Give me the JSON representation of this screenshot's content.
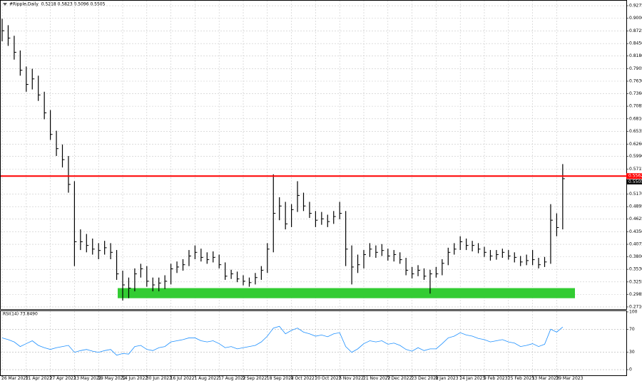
{
  "chart_data": [
    {
      "type": "ohlc",
      "title": "#Ripple,Daily  0.5218 0.5823 0.5096 0.5505",
      "categories": [
        "26 Mar 2022",
        null,
        null,
        null,
        "11 Apr 2022",
        null,
        null,
        null,
        "27 Apr 2022",
        null,
        null,
        null,
        "13 May 2022",
        null,
        null,
        null,
        "29 May 2022",
        null,
        null,
        null,
        "14 Jun 2022",
        null,
        null,
        null,
        "30 Jun 2022",
        null,
        null,
        null,
        "16 Jul 2022",
        null,
        null,
        null,
        "1 Aug 2022",
        null,
        null,
        null,
        "17 Aug 2022",
        null,
        null,
        null,
        "2 Sep 2022",
        null,
        null,
        null,
        "18 Sep 2022",
        null,
        null,
        null,
        "4 Oct 2022",
        null,
        null,
        null,
        "20 Oct 2022",
        null,
        null,
        null,
        "5 Nov 2022",
        null,
        null,
        null,
        "21 Nov 2022",
        null,
        null,
        null,
        "7 Dec 2022",
        null,
        null,
        null,
        "23 Dec 2022",
        null,
        null,
        null,
        "8 Jan 2023",
        null,
        null,
        null,
        "24 Jan 2023",
        null,
        null,
        null,
        "9 Feb 2023",
        null,
        null,
        null,
        "25 Feb 2023",
        null,
        null,
        null,
        "13 Mar 2023",
        null,
        null,
        null,
        "29 Mar 2023",
        null
      ],
      "high": [
        0.899,
        0.885,
        0.862,
        0.83,
        0.795,
        0.79,
        0.775,
        0.74,
        0.7,
        0.655,
        0.625,
        0.6,
        0.545,
        0.44,
        0.43,
        0.42,
        0.41,
        0.415,
        0.41,
        0.395,
        0.35,
        0.335,
        0.355,
        0.365,
        0.36,
        0.335,
        0.335,
        0.34,
        0.365,
        0.37,
        0.375,
        0.395,
        0.405,
        0.398,
        0.39,
        0.392,
        0.385,
        0.368,
        0.352,
        0.348,
        0.34,
        0.335,
        0.345,
        0.36,
        0.41,
        0.56,
        0.51,
        0.5,
        0.495,
        0.545,
        0.52,
        0.5,
        0.48,
        0.478,
        0.472,
        0.48,
        0.5,
        0.48,
        0.405,
        0.385,
        0.395,
        0.41,
        0.405,
        0.408,
        0.398,
        0.395,
        0.39,
        0.378,
        0.358,
        0.362,
        0.355,
        0.352,
        0.358,
        0.375,
        0.4,
        0.41,
        0.425,
        0.42,
        0.415,
        0.41,
        0.402,
        0.395,
        0.395,
        0.398,
        0.395,
        0.39,
        0.382,
        0.385,
        0.395,
        0.378,
        0.38,
        0.495,
        0.475,
        0.5823
      ],
      "low": [
        0.85,
        0.84,
        0.81,
        0.775,
        0.74,
        0.745,
        0.72,
        0.68,
        0.635,
        0.6,
        0.575,
        0.52,
        0.36,
        0.395,
        0.39,
        0.385,
        0.375,
        0.385,
        0.375,
        0.33,
        0.285,
        0.29,
        0.305,
        0.335,
        0.315,
        0.305,
        0.305,
        0.31,
        0.32,
        0.345,
        0.35,
        0.36,
        0.375,
        0.37,
        0.365,
        0.368,
        0.355,
        0.33,
        0.332,
        0.325,
        0.318,
        0.315,
        0.32,
        0.33,
        0.345,
        0.39,
        0.46,
        0.44,
        0.445,
        0.478,
        0.48,
        0.465,
        0.445,
        0.45,
        0.445,
        0.452,
        0.462,
        0.36,
        0.32,
        0.345,
        0.355,
        0.38,
        0.378,
        0.382,
        0.372,
        0.37,
        0.365,
        0.34,
        0.333,
        0.338,
        0.33,
        0.3,
        0.335,
        0.34,
        0.362,
        0.385,
        0.395,
        0.395,
        0.392,
        0.388,
        0.38,
        0.372,
        0.374,
        0.378,
        0.374,
        0.368,
        0.36,
        0.362,
        0.362,
        0.355,
        0.358,
        0.365,
        0.425,
        0.44
      ],
      "close": [
        0.873,
        0.857,
        0.826,
        0.787,
        0.756,
        0.768,
        0.733,
        0.694,
        0.647,
        0.616,
        0.592,
        0.538,
        0.413,
        0.413,
        0.405,
        0.397,
        0.394,
        0.4,
        0.39,
        0.343,
        0.319,
        0.312,
        0.343,
        0.354,
        0.327,
        0.319,
        0.323,
        0.327,
        0.354,
        0.358,
        0.363,
        0.382,
        0.39,
        0.379,
        0.374,
        0.379,
        0.363,
        0.338,
        0.343,
        0.332,
        0.327,
        0.324,
        0.335,
        0.351,
        0.397,
        0.475,
        0.491,
        0.452,
        0.483,
        0.514,
        0.491,
        0.475,
        0.46,
        0.463,
        0.457,
        0.468,
        0.475,
        0.397,
        0.358,
        0.363,
        0.385,
        0.397,
        0.39,
        0.394,
        0.382,
        0.385,
        0.374,
        0.351,
        0.343,
        0.351,
        0.338,
        0.343,
        0.343,
        0.366,
        0.39,
        0.397,
        0.413,
        0.405,
        0.405,
        0.397,
        0.39,
        0.382,
        0.385,
        0.39,
        0.382,
        0.379,
        0.369,
        0.372,
        0.374,
        0.363,
        0.369,
        0.46,
        0.444,
        0.5505
      ],
      "color": "#000000",
      "ylim": [
        0.2663,
        0.9384
      ],
      "yticks": [
        {
          "value": 0.9275,
          "label": "0.9275"
        },
        {
          "value": 0.9,
          "label": "0.9000"
        },
        {
          "value": 0.8725,
          "label": "0.8725"
        },
        {
          "value": 0.845,
          "label": "0.8450"
        },
        {
          "value": 0.818,
          "label": "0.8180"
        },
        {
          "value": 0.7905,
          "label": "0.7905"
        },
        {
          "value": 0.763,
          "label": "0.7630"
        },
        {
          "value": 0.736,
          "label": "0.7360"
        },
        {
          "value": 0.7085,
          "label": "0.7085"
        },
        {
          "value": 0.681,
          "label": "0.6810"
        },
        {
          "value": 0.6535,
          "label": "0.6535"
        },
        {
          "value": 0.626,
          "label": "0.6260"
        },
        {
          "value": 0.599,
          "label": "0.5990"
        },
        {
          "value": 0.5715,
          "label": "0.5715"
        },
        {
          "value": 0.517,
          "label": "0.5170"
        },
        {
          "value": 0.4895,
          "label": "0.4895"
        },
        {
          "value": 0.4625,
          "label": "0.4625"
        },
        {
          "value": 0.435,
          "label": "0.4350"
        },
        {
          "value": 0.4075,
          "label": "0.4075"
        },
        {
          "value": 0.38,
          "label": "0.3800"
        },
        {
          "value": 0.353,
          "label": "0.3530"
        },
        {
          "value": 0.3255,
          "label": "0.3255"
        },
        {
          "value": 0.2985,
          "label": "0.2985"
        },
        {
          "value": 0.271,
          "label": "0.2710"
        }
      ],
      "grid": true,
      "levels": [
        {
          "value": 0.5562,
          "color": "#ff0000"
        }
      ],
      "current_price": 0.5505,
      "zone": {
        "range": [
          0.29,
          0.312
        ],
        "color": "#33cc33"
      }
    },
    {
      "type": "line",
      "title": "RSI(14) 73.8490",
      "values": [
        55,
        52,
        48,
        40,
        45,
        50,
        42,
        38,
        35,
        38,
        40,
        42,
        30,
        33,
        35,
        32,
        30,
        33,
        35,
        25,
        28,
        27,
        40,
        42,
        35,
        33,
        38,
        40,
        48,
        50,
        52,
        55,
        55,
        50,
        48,
        50,
        45,
        38,
        40,
        36,
        38,
        40,
        42,
        48,
        58,
        72,
        75,
        62,
        68,
        72,
        65,
        62,
        58,
        60,
        57,
        62,
        64,
        40,
        30,
        36,
        45,
        50,
        48,
        50,
        44,
        46,
        42,
        35,
        32,
        38,
        33,
        36,
        36,
        45,
        55,
        58,
        64,
        60,
        58,
        54,
        52,
        48,
        50,
        52,
        48,
        46,
        40,
        42,
        45,
        40,
        44,
        70,
        65,
        73.849
      ],
      "color": "#1e90ff",
      "ylim": [
        -9.8,
        101.2
      ],
      "yticks": [
        100,
        70,
        30,
        0
      ],
      "grid": true
    }
  ]
}
